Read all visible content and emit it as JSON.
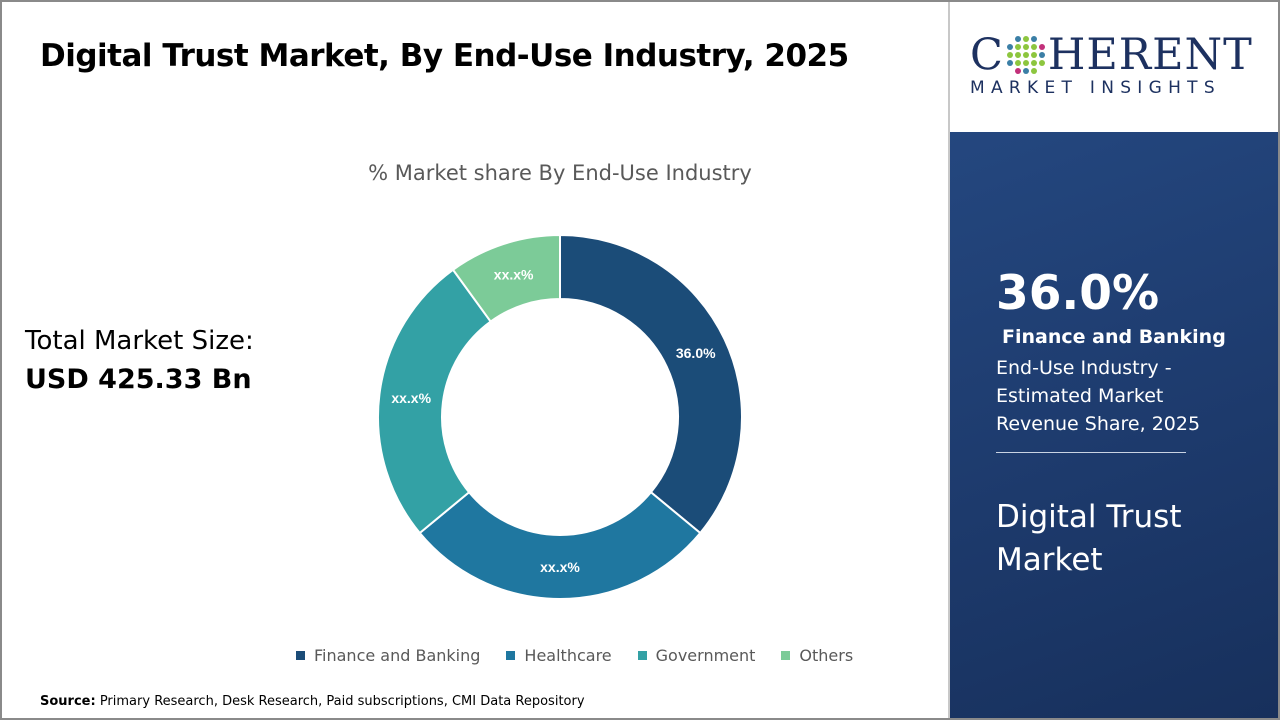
{
  "header": {
    "title": "Digital Trust Market, By End-Use Industry, 2025"
  },
  "total": {
    "label": "Total Market Size:",
    "value": "USD 425.33 Bn"
  },
  "chart_data": {
    "type": "pie",
    "subtype": "donut",
    "title": "% Market share By End-Use Industry",
    "categories": [
      "Finance and Banking",
      "Healthcare",
      "Government",
      "Others"
    ],
    "values": [
      36.0,
      28,
      26,
      10
    ],
    "labels": [
      "36.0%",
      "xx.x%",
      "xx.x%",
      "xx.x%"
    ],
    "colors": [
      "#1b4c78",
      "#1f77a0",
      "#33a1a5",
      "#7ccb98"
    ],
    "legend": "bottom"
  },
  "source": {
    "label": "Source:",
    "text": " Primary Research, Desk Research, Paid subscriptions, CMI Data Repository"
  },
  "logo": {
    "top": "COHERENT",
    "bottom": "MARKET INSIGHTS"
  },
  "panel": {
    "percent": "36.0%",
    "segment": "Finance and Banking",
    "description": "End-Use Industry - Estimated Market Revenue Share, 2025",
    "market": "Digital Trust Market",
    "bg_color": "#1e3a6b"
  }
}
